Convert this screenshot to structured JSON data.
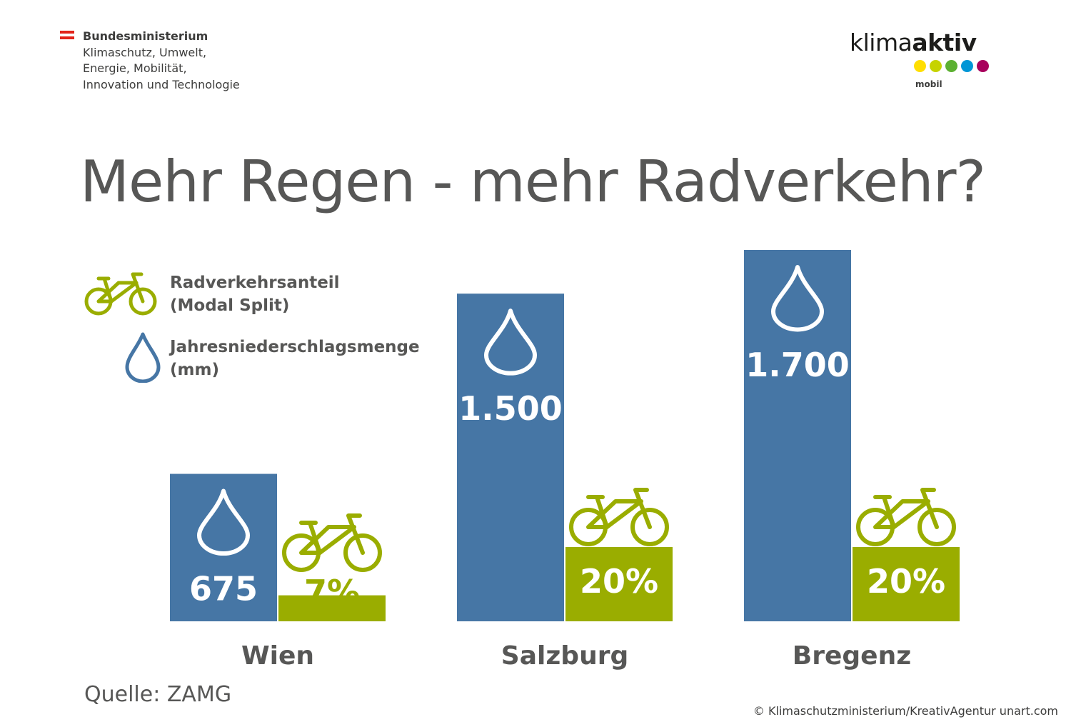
{
  "ministry": {
    "lines": [
      "Bundesministerium",
      "Klimaschutz, Umwelt,",
      "Energie, Mobilität,",
      "Innovation und Technologie"
    ]
  },
  "logo": {
    "word_part1": "klima",
    "word_part2": "aktiv",
    "sub": "mobil",
    "dot_colors": [
      "#ffde00",
      "#c6d300",
      "#5cb031",
      "#0096d6",
      "#a8005c"
    ]
  },
  "title": "Mehr Regen - mehr Radverkehr?",
  "legend": {
    "bike_label_1": "Radverkehrsanteil",
    "bike_label_2": "(Modal Split)",
    "rain_label_1": "Jahresniederschlagsmenge",
    "rain_label_2": "(mm)",
    "bike_icon": "bicycle-icon",
    "rain_icon": "raindrop-icon"
  },
  "colors": {
    "rain": "#4676a5",
    "bike": "#9aad00",
    "text": "#575756"
  },
  "chart_data": {
    "type": "bar",
    "title": "Mehr Regen - mehr Radverkehr?",
    "categories": [
      "Wien",
      "Salzburg",
      "Bregenz"
    ],
    "series": [
      {
        "name": "Jahresniederschlagsmenge (mm)",
        "values": [
          675,
          1500,
          1700
        ],
        "labels": [
          "675",
          "1.500",
          "1.700"
        ]
      },
      {
        "name": "Radverkehrsanteil (Modal Split)",
        "values": [
          7,
          20,
          20
        ],
        "labels": [
          "7%",
          "20%",
          "20%"
        ]
      }
    ]
  },
  "source": "Quelle: ZAMG",
  "credit": "© Klimaschutzministerium/KreativAgentur unart.com"
}
